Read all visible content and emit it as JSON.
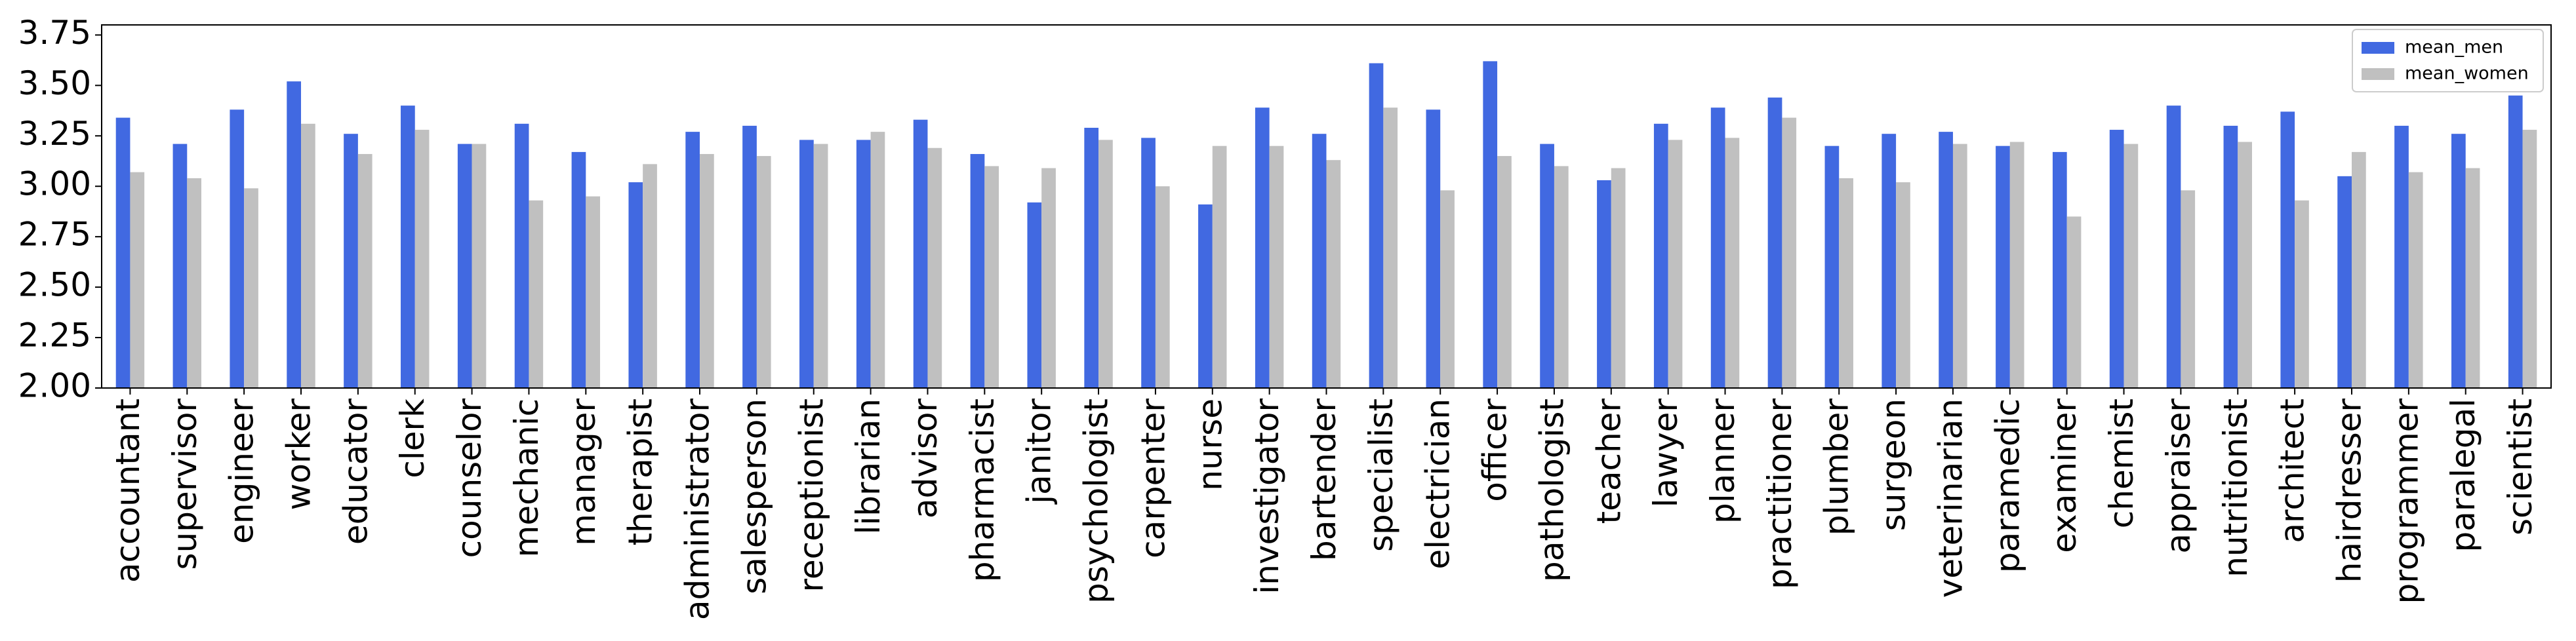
{
  "chart_data": {
    "type": "bar",
    "categories": [
      "accountant",
      "supervisor",
      "engineer",
      "worker",
      "educator",
      "clerk",
      "counselor",
      "mechanic",
      "manager",
      "therapist",
      "administrator",
      "salesperson",
      "receptionist",
      "librarian",
      "advisor",
      "pharmacist",
      "janitor",
      "psychologist",
      "carpenter",
      "nurse",
      "investigator",
      "bartender",
      "specialist",
      "electrician",
      "officer",
      "pathologist",
      "teacher",
      "lawyer",
      "planner",
      "practitioner",
      "plumber",
      "surgeon",
      "veterinarian",
      "paramedic",
      "examiner",
      "chemist",
      "appraiser",
      "nutritionist",
      "architect",
      "hairdresser",
      "programmer",
      "paralegal",
      "scientist"
    ],
    "series": [
      {
        "name": "mean_men",
        "color": "#4169e1",
        "values": [
          3.34,
          3.21,
          3.38,
          3.52,
          3.26,
          3.4,
          3.21,
          3.31,
          3.17,
          3.02,
          3.27,
          3.3,
          3.23,
          3.23,
          3.33,
          3.16,
          2.92,
          3.29,
          3.24,
          2.91,
          3.39,
          3.26,
          3.61,
          3.38,
          3.62,
          3.21,
          3.03,
          3.31,
          3.39,
          3.44,
          3.2,
          3.26,
          3.27,
          3.2,
          3.17,
          3.28,
          3.4,
          3.3,
          3.37,
          3.05,
          3.3,
          3.26,
          3.45
        ]
      },
      {
        "name": "mean_women",
        "color": "#c0c0c0",
        "values": [
          3.07,
          3.04,
          2.99,
          3.31,
          3.16,
          3.28,
          3.21,
          2.93,
          2.95,
          3.11,
          3.16,
          3.15,
          3.21,
          3.27,
          3.19,
          3.1,
          3.09,
          3.23,
          3.0,
          3.2,
          3.2,
          3.13,
          3.39,
          2.98,
          3.15,
          3.1,
          3.09,
          3.23,
          3.24,
          3.34,
          3.04,
          3.02,
          3.21,
          3.22,
          2.85,
          3.21,
          2.98,
          3.22,
          2.93,
          3.17,
          3.07,
          3.09,
          3.28
        ]
      }
    ],
    "ylim": [
      2.0,
      3.8
    ],
    "yticks": [
      {
        "value": 2,
        "label": "2.00"
      },
      2.25,
      {
        "value": 2.5,
        "label": "2.50"
      },
      2.75,
      {
        "value": 3,
        "label": "3.00"
      },
      3.25,
      {
        "value": 3.5,
        "label": "3.50"
      },
      3.75
    ],
    "grid": false,
    "legend": "upper right"
  }
}
